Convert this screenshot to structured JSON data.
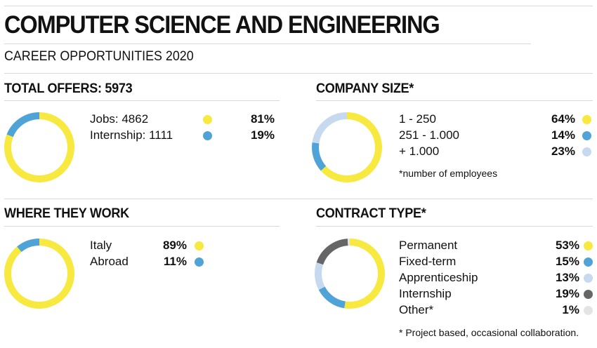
{
  "header": {
    "title": "COMPUTER SCIENCE AND ENGINEERING",
    "subtitle": "CAREER OPPORTUNITIES 2020"
  },
  "colors": {
    "yellow": "#f7e93f",
    "blue": "#4fa3d6",
    "light_blue": "#c6d9ee",
    "dark_gray": "#666666",
    "light_gray": "#e4e4e4"
  },
  "chart_data": [
    {
      "type": "pie",
      "title": "TOTAL OFFERS: 5973",
      "categories": [
        "Jobs: 4862",
        "Internship: 1111"
      ],
      "values": [
        81,
        19
      ],
      "colors": [
        "#f7e93f",
        "#4fa3d6"
      ],
      "labels": [
        "81%",
        "19%"
      ]
    },
    {
      "type": "pie",
      "title": "COMPANY SIZE*",
      "categories": [
        "1 - 250",
        "251 - 1.000",
        "+ 1.000"
      ],
      "values": [
        64,
        14,
        23
      ],
      "colors": [
        "#f7e93f",
        "#4fa3d6",
        "#c6d9ee"
      ],
      "labels": [
        "64%",
        "14%",
        "23%"
      ],
      "note": "*number of employees"
    },
    {
      "type": "pie",
      "title": "WHERE THEY WORK",
      "categories": [
        "Italy",
        "Abroad"
      ],
      "values": [
        89,
        11
      ],
      "colors": [
        "#f7e93f",
        "#4fa3d6"
      ],
      "labels": [
        "89%",
        "11%"
      ]
    },
    {
      "type": "pie",
      "title": "CONTRACT TYPE*",
      "categories": [
        "Permanent",
        "Fixed-term",
        "Apprenticeship",
        "Internship",
        "Other*"
      ],
      "values": [
        53,
        15,
        13,
        19,
        1
      ],
      "colors": [
        "#f7e93f",
        "#4fa3d6",
        "#c6d9ee",
        "#666666",
        "#e4e4e4"
      ],
      "labels": [
        "53%",
        "15%",
        "13%",
        "19%",
        "1%"
      ],
      "note": "* Project based, occasional collaboration."
    }
  ]
}
